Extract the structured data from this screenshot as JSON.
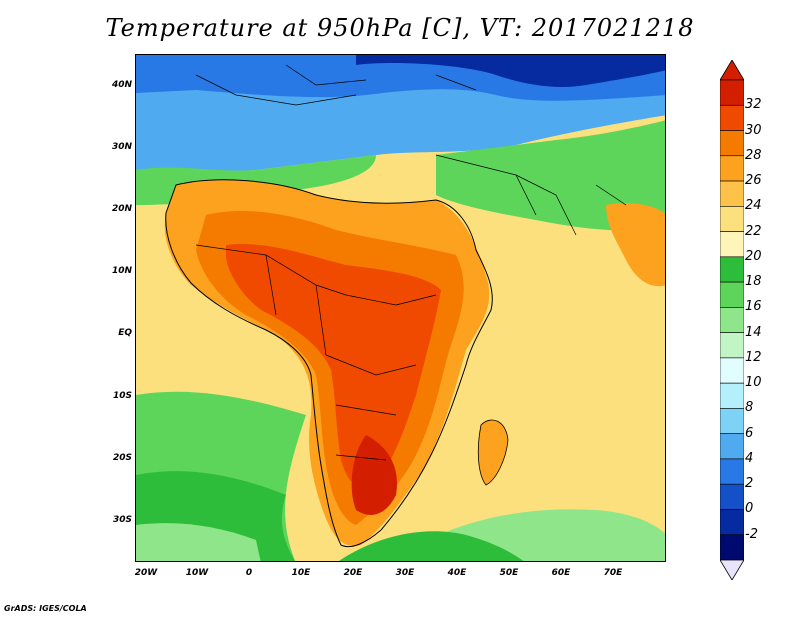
{
  "title": "Temperature at 950hPa [C], VT: 2017021218",
  "credit": "GrADS: IGES/COLA",
  "map": {
    "region": "Africa",
    "variable": "temperature_950hPa",
    "units": "C",
    "lat_ticks": [
      "40N",
      "30N",
      "20N",
      "10N",
      "EQ",
      "10S",
      "20S",
      "30S"
    ],
    "lon_ticks": [
      "20W",
      "10W",
      "0",
      "10E",
      "20E",
      "30E",
      "40E",
      "50E",
      "60E",
      "70E"
    ]
  },
  "colorbar": {
    "labels": [
      "32",
      "30",
      "28",
      "26",
      "24",
      "22",
      "20",
      "18",
      "16",
      "14",
      "12",
      "10",
      "8",
      "6",
      "4",
      "2",
      "0",
      "-2"
    ],
    "colors": [
      "#7a0000",
      "#d41e00",
      "#f04a00",
      "#f57a00",
      "#fca21e",
      "#fdc24a",
      "#fde07e",
      "#fff5b8",
      "#2ebd3a",
      "#5dd45a",
      "#8fe68a",
      "#c2f5c6",
      "#e2fdfd",
      "#b4f0fb",
      "#7ed2f5",
      "#4faaf0",
      "#2879e6",
      "#1451c8",
      "#062aa0",
      "#000a6e",
      "#e8e4fb"
    ]
  }
}
